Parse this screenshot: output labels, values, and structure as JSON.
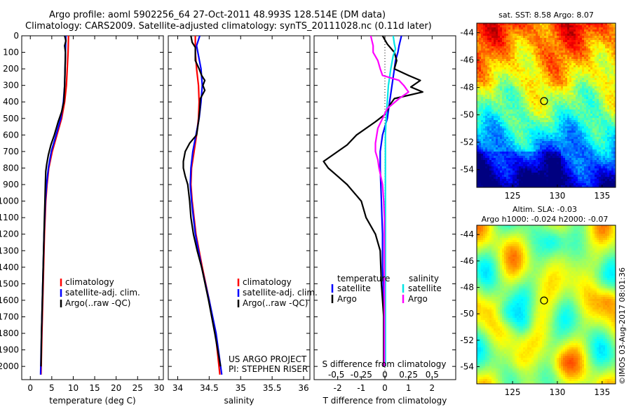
{
  "title_line1": "Argo profile: aoml 5902256_64 27-Oct-2011 48.993S 128.514E (DM data)",
  "title_line2": "Climatology: CARS2009. Satellite-adjusted climatology: synTS_20111028.nc (0.11d later)",
  "copyright": "©IMOS 03-Aug-2017 08:01:36",
  "project": {
    "line1": "US ARGO PROJECT",
    "line2": "PI: STEPHEN RISER"
  },
  "colors": {
    "climatology": "#ff0000",
    "satellite": "#0000ff",
    "argo": "#000000",
    "sat_salinity": "#00e5e5",
    "argo_salinity": "#ff00ff"
  },
  "chart_data": [
    {
      "id": "temperature",
      "type": "line",
      "xlabel": "temperature (deg C)",
      "xlim": [
        -2,
        31
      ],
      "xticks": [
        0,
        5,
        10,
        15,
        20,
        25,
        30
      ],
      "xticklabels": [
        "0",
        "5",
        "10",
        "15",
        "20",
        "25",
        "30"
      ],
      "ylim": [
        2080,
        0
      ],
      "yticks": [
        0,
        100,
        200,
        300,
        400,
        500,
        600,
        700,
        800,
        900,
        1000,
        1100,
        1200,
        1300,
        1400,
        1500,
        1600,
        1700,
        1800,
        1900,
        2000
      ],
      "yticklabels": [
        "0",
        "100",
        "200",
        "300",
        "400",
        "500",
        "600",
        "700",
        "800",
        "900",
        "1000",
        "1100",
        "1200",
        "1300",
        "1400",
        "1500",
        "1600",
        "1700",
        "1800",
        "1900",
        "2000"
      ],
      "legend": [
        "climatology",
        "satellite-adj. clim.",
        "Argo(..raw -QC)"
      ],
      "series": [
        {
          "name": "climatology",
          "color": "#ff0000",
          "depth": [
            0,
            100,
            200,
            300,
            400,
            500,
            600,
            700,
            800,
            900,
            1000,
            1200,
            1400,
            1600,
            1800,
            2050
          ],
          "values": [
            8.9,
            8.8,
            8.6,
            8.4,
            8.0,
            7.3,
            6.2,
            5.1,
            4.3,
            3.9,
            3.6,
            3.3,
            3.1,
            2.9,
            2.7,
            2.5
          ]
        },
        {
          "name": "satellite-adj. clim.",
          "color": "#0000ff",
          "depth": [
            0,
            100,
            200,
            300,
            400,
            500,
            600,
            700,
            800,
            900,
            1000,
            1200,
            1400,
            1600,
            1800,
            2050
          ],
          "values": [
            8.3,
            8.2,
            8.1,
            8.0,
            7.7,
            7.1,
            6.0,
            4.9,
            4.2,
            3.8,
            3.5,
            3.2,
            3.0,
            2.8,
            2.6,
            2.4
          ]
        },
        {
          "name": "Argo(..raw -QC)",
          "color": "#000000",
          "depth": [
            0,
            30,
            60,
            100,
            200,
            300,
            400,
            460,
            520,
            600,
            660,
            720,
            780,
            820,
            900,
            1000,
            1100,
            1200,
            1300,
            1400,
            1500,
            1600,
            1800,
            2000
          ],
          "values": [
            8.0,
            8.3,
            8.0,
            8.2,
            8.1,
            8.0,
            7.8,
            7.3,
            6.5,
            5.6,
            4.8,
            4.2,
            3.8,
            3.6,
            3.5,
            3.4,
            3.3,
            3.2,
            3.1,
            3.0,
            2.9,
            2.8,
            2.6,
            2.5
          ]
        }
      ]
    },
    {
      "id": "salinity",
      "type": "line",
      "xlabel": "salinity",
      "xlim": [
        33.85,
        36.1
      ],
      "xticks": [
        34,
        34.5,
        35,
        35.5,
        36
      ],
      "xticklabels": [
        "34",
        "34.5",
        "35",
        "35.5",
        "36"
      ],
      "ylim": [
        2080,
        0
      ],
      "legend": [
        "climatology",
        "satellite-adj. clim.",
        "Argo(..raw -QC)"
      ],
      "series": [
        {
          "name": "climatology",
          "color": "#ff0000",
          "depth": [
            0,
            100,
            200,
            300,
            400,
            500,
            600,
            700,
            800,
            900,
            1000,
            1200,
            1400,
            1600,
            1800,
            2050
          ],
          "values": [
            34.28,
            34.28,
            34.3,
            34.33,
            34.34,
            34.33,
            34.3,
            34.26,
            34.22,
            34.21,
            34.23,
            34.29,
            34.39,
            34.5,
            34.6,
            34.67
          ]
        },
        {
          "name": "satellite-adj. clim.",
          "color": "#0000ff",
          "depth": [
            0,
            60,
            120,
            200,
            300,
            400,
            500,
            600,
            700,
            800,
            900,
            1000,
            1200,
            1400,
            1600,
            1800,
            2050
          ],
          "values": [
            34.35,
            34.3,
            34.33,
            34.37,
            34.39,
            34.37,
            34.34,
            34.29,
            34.24,
            34.21,
            34.2,
            34.22,
            34.28,
            34.38,
            34.5,
            34.61,
            34.7
          ]
        },
        {
          "name": "Argo(..raw -QC)",
          "color": "#000000",
          "depth": [
            0,
            40,
            70,
            120,
            150,
            200,
            240,
            270,
            300,
            330,
            380,
            450,
            520,
            600,
            650,
            700,
            760,
            800,
            850,
            900,
            1000,
            1100,
            1200,
            1300,
            1400,
            1600,
            1800,
            2000
          ],
          "values": [
            34.21,
            34.23,
            34.28,
            34.28,
            34.28,
            34.34,
            34.38,
            34.43,
            34.4,
            34.43,
            34.36,
            34.35,
            34.33,
            34.3,
            34.19,
            34.12,
            34.09,
            34.09,
            34.12,
            34.16,
            34.19,
            34.21,
            34.25,
            34.31,
            34.38,
            34.49,
            34.59,
            34.68
          ]
        }
      ]
    },
    {
      "id": "difference",
      "type": "line",
      "xlabel": "T difference from climatology",
      "top_xlabel": "S difference from climatology",
      "xlim": [
        -3,
        3
      ],
      "xticks": [
        -2,
        -1,
        0,
        1,
        2
      ],
      "xticklabels": [
        "-2",
        "-1",
        "0",
        "1",
        "2"
      ],
      "top_ticklabels": [
        "-0.5",
        "-0.25",
        "0",
        "0.25",
        "0.5"
      ],
      "ylim": [
        2080,
        0
      ],
      "legend_temperature": {
        "title": "temperature",
        "items": [
          "satellite",
          "Argo"
        ]
      },
      "legend_salinity": {
        "title": "salinity",
        "items": [
          "satellite",
          "Argo"
        ]
      },
      "series": [
        {
          "name": "temperature satellite",
          "color": "#0000ff",
          "depth": [
            0,
            60,
            100,
            150,
            200,
            300,
            400,
            500,
            600,
            700,
            800,
            1000,
            1200,
            1400,
            1600,
            1800,
            2000
          ],
          "values": [
            0.7,
            0.6,
            0.55,
            0.45,
            0.4,
            0.3,
            0.2,
            0.1,
            -0.1,
            -0.2,
            -0.2,
            -0.15,
            -0.1,
            -0.1,
            -0.05,
            -0.05,
            -0.05
          ]
        },
        {
          "name": "temperature Argo",
          "color": "#000000",
          "depth": [
            0,
            50,
            100,
            150,
            200,
            240,
            270,
            310,
            340,
            380,
            420,
            470,
            520,
            600,
            660,
            700,
            760,
            800,
            850,
            900,
            950,
            1000,
            1100,
            1200,
            1300,
            1500,
            1700,
            2000
          ],
          "values": [
            -0.1,
            0.1,
            0.4,
            0.5,
            0.4,
            1.0,
            1.5,
            1.1,
            1.6,
            0.4,
            0.2,
            0.05,
            -0.4,
            -1.2,
            -1.6,
            -2.0,
            -2.6,
            -2.4,
            -2.0,
            -1.6,
            -1.3,
            -1.0,
            -0.8,
            -0.4,
            -0.2,
            -0.15,
            -0.05,
            -0.05
          ]
        },
        {
          "name": "salinity satellite",
          "color": "#00e5e5",
          "depth": [
            0,
            50,
            80,
            120,
            200,
            300,
            400,
            500,
            600,
            800,
            1000,
            1200,
            1500,
            2000
          ],
          "values": [
            0.35,
            0.4,
            0.45,
            0.35,
            0.25,
            0.15,
            0.1,
            0.05,
            0.02,
            0.02,
            0.02,
            0.02,
            0.02,
            0.02
          ]
        },
        {
          "name": "salinity Argo",
          "color": "#ff00ff",
          "depth": [
            0,
            60,
            100,
            150,
            200,
            240,
            270,
            300,
            340,
            380,
            440,
            500,
            560,
            650,
            700,
            750,
            800,
            900,
            1000,
            1100,
            1200,
            1400,
            1600,
            1800,
            2000
          ],
          "values": [
            -0.6,
            -0.5,
            -0.5,
            -0.3,
            -0.2,
            -0.1,
            0.6,
            0.8,
            1.0,
            0.6,
            0.1,
            -0.1,
            -0.3,
            -0.4,
            -0.4,
            -0.3,
            -0.25,
            -0.1,
            -0.05,
            -0.02,
            -0.02,
            -0.02,
            -0.02,
            -0.02,
            -0.02
          ]
        }
      ]
    },
    {
      "id": "sst_map",
      "type": "heatmap",
      "title": "sat. SST: 8.58 Argo: 8.07",
      "xticks": [
        125,
        130,
        135
      ],
      "yticks": [
        -44,
        -46,
        -48,
        -50,
        -52,
        -54
      ],
      "xlim": [
        121,
        136.5
      ],
      "ylim": [
        -55.3,
        -43.3
      ],
      "marker": {
        "lon": 128.514,
        "lat": -48.993
      }
    },
    {
      "id": "sla_map",
      "type": "heatmap",
      "title_line1": "Altim. SLA: -0.03",
      "title_line2": "Argo h1000: -0.024 h2000: -0.07",
      "xticks": [
        125,
        130,
        135
      ],
      "yticks": [
        -44,
        -46,
        -48,
        -50,
        -52,
        -54
      ],
      "xlim": [
        121,
        136.5
      ],
      "ylim": [
        -55.3,
        -43.3
      ],
      "marker": {
        "lon": 128.514,
        "lat": -48.993
      }
    }
  ]
}
